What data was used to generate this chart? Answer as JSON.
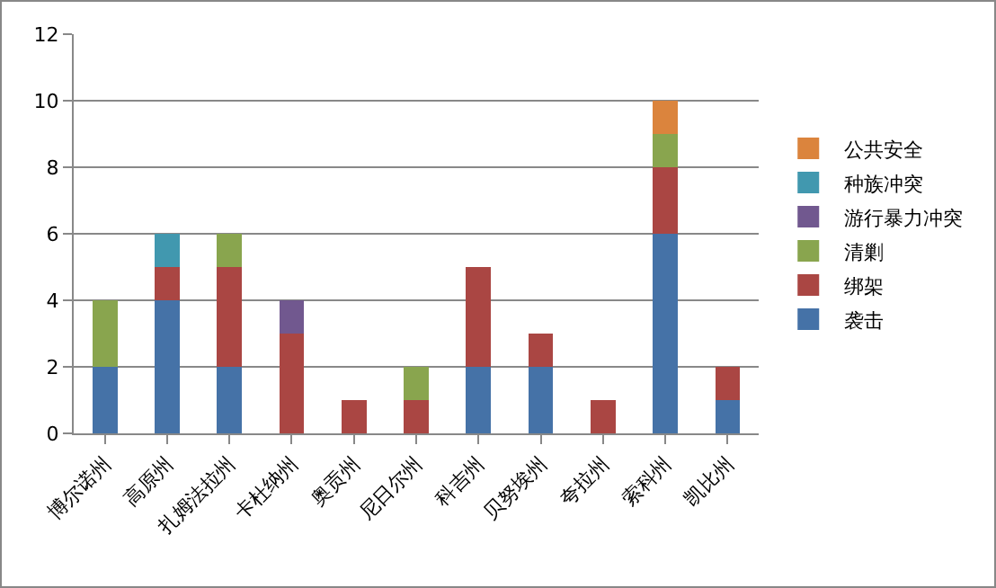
{
  "chart_data": {
    "type": "bar",
    "stacked": true,
    "categories": [
      "博尔诺州",
      "高原州",
      "扎姆法拉州",
      "卡杜纳州",
      "奥贡州",
      "尼日尔州",
      "科吉州",
      "贝努埃州",
      "夸拉州",
      "索科州",
      "凯比州"
    ],
    "series": [
      {
        "name": "袭击",
        "color": "#4572a7",
        "values": [
          2,
          4,
          2,
          null,
          null,
          null,
          2,
          2,
          null,
          6,
          1
        ]
      },
      {
        "name": "绑架",
        "color": "#aa4643",
        "values": [
          null,
          1,
          3,
          3,
          1,
          1,
          3,
          1,
          1,
          2,
          1
        ]
      },
      {
        "name": "清剿",
        "color": "#89a54e",
        "values": [
          2,
          null,
          1,
          null,
          null,
          1,
          null,
          null,
          null,
          1,
          null
        ]
      },
      {
        "name": "游行暴力冲突",
        "color": "#71588f",
        "values": [
          null,
          null,
          null,
          1,
          null,
          null,
          null,
          null,
          null,
          null,
          null
        ]
      },
      {
        "name": "种族冲突",
        "color": "#4198af",
        "values": [
          null,
          1,
          null,
          null,
          null,
          null,
          null,
          null,
          null,
          null,
          null
        ]
      },
      {
        "name": "公共安全",
        "color": "#db843d",
        "values": [
          null,
          null,
          null,
          null,
          null,
          null,
          null,
          null,
          null,
          1,
          null
        ]
      }
    ],
    "ylim": [
      0,
      12
    ],
    "yticks": [
      0,
      2,
      4,
      6,
      8,
      10,
      12
    ],
    "grid": "y",
    "legend": "right"
  }
}
